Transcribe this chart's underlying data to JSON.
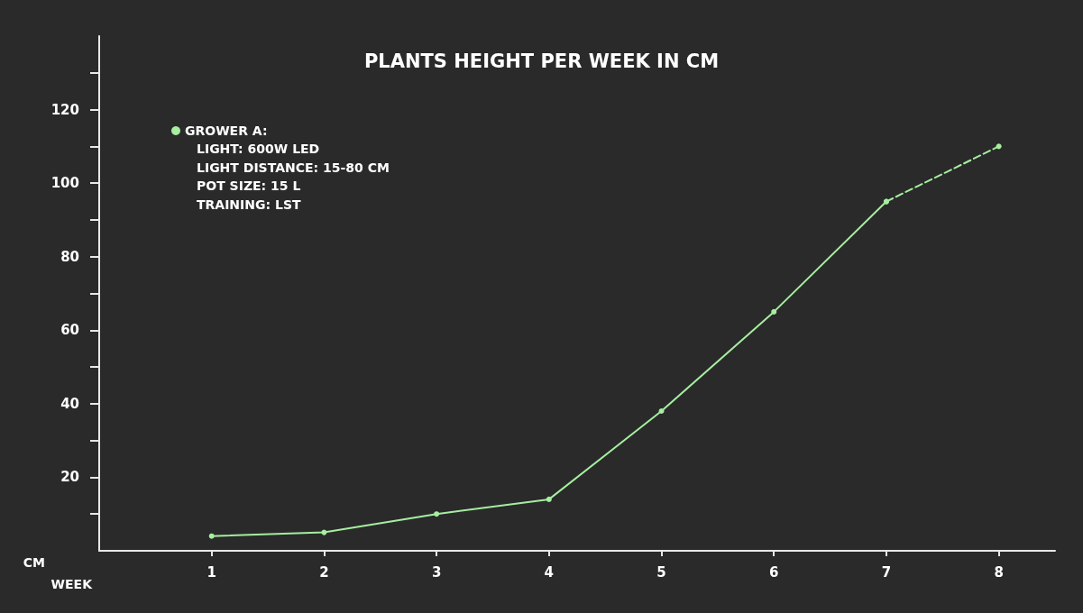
{
  "chart_data": {
    "type": "line",
    "title": "PLANTS HEIGHT PER WEEK IN CM",
    "xlabel": "WEEK",
    "ylabel": "CM",
    "series": [
      {
        "name": "GROWER A:",
        "color": "#a6eea0",
        "x": [
          1,
          2,
          3,
          4,
          5,
          6,
          7
        ],
        "values": [
          4,
          5,
          10,
          14,
          38,
          65,
          95
        ],
        "line_style": "solid"
      },
      {
        "color": "#a6eea0",
        "x": [
          7,
          8
        ],
        "values": [
          95,
          110
        ],
        "line_style": "dashed"
      }
    ],
    "annotations": [
      "LIGHT: 600W LED",
      "LIGHT DISTANCE: 15-80 CM",
      "POT SIZE: 15 L",
      "TRAINING: LST"
    ],
    "xlim": [
      0,
      8.5
    ],
    "xticks": [
      1,
      2,
      3,
      4,
      5,
      6,
      7,
      8
    ],
    "ylim": [
      0,
      140
    ],
    "yticks": [
      {
        "value": 10,
        "label": null
      },
      20,
      {
        "value": 30,
        "label": null
      },
      40,
      {
        "value": 50,
        "label": null
      },
      60,
      {
        "value": 70,
        "label": null
      },
      80,
      {
        "value": 90,
        "label": null
      },
      100,
      {
        "value": 110,
        "label": null
      },
      120,
      {
        "value": 130,
        "label": null
      }
    ],
    "grid": false,
    "legend": "top left",
    "marker": "circle"
  }
}
